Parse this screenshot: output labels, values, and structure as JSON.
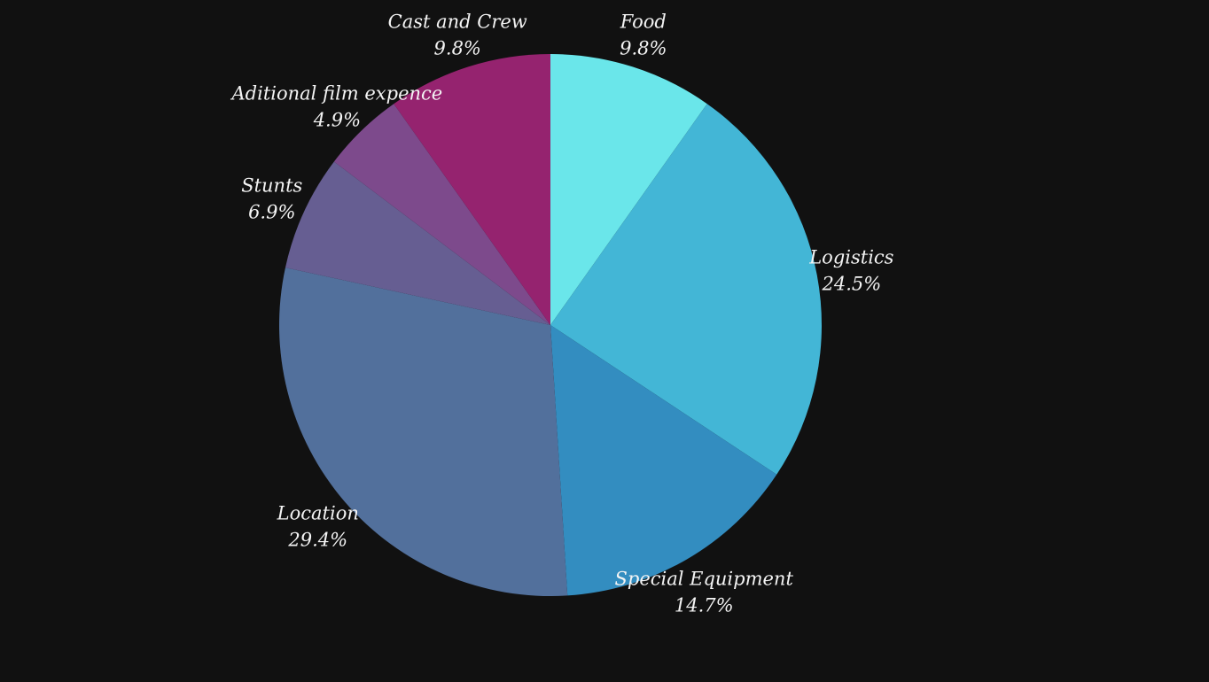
{
  "chart_data": {
    "type": "pie",
    "start": "top",
    "direction": "clockwise",
    "slices": [
      {
        "label": "Food",
        "value": 9.8,
        "value_label": "9.8%",
        "color": "#6ae6ea"
      },
      {
        "label": "Logistics",
        "value": 24.5,
        "value_label": "24.5%",
        "color": "#43b6d6"
      },
      {
        "label": "Special Equipment",
        "value": 14.7,
        "value_label": "14.7%",
        "color": "#338dc0"
      },
      {
        "label": "Location",
        "value": 29.4,
        "value_label": "29.4%",
        "color": "#52709c"
      },
      {
        "label": "Stunts",
        "value": 6.9,
        "value_label": "6.9%",
        "color": "#665e92"
      },
      {
        "label": "Aditional film expence",
        "value": 4.9,
        "value_label": "4.9%",
        "color": "#7d4a8c"
      },
      {
        "label": "Cast and Crew",
        "value": 9.8,
        "value_label": "9.8%",
        "color": "#95236f"
      }
    ]
  }
}
